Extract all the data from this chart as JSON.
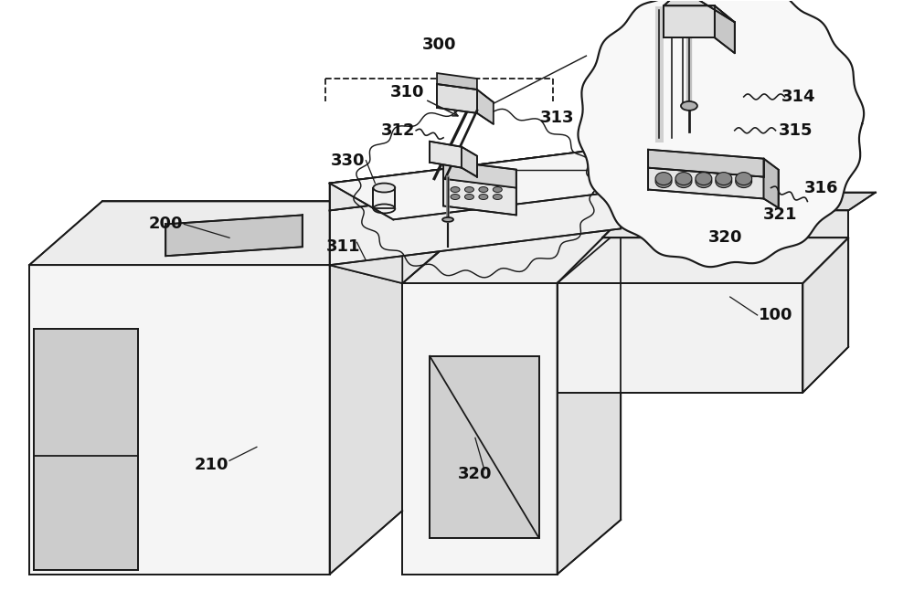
{
  "bg_color": "#ffffff",
  "lc": "#1a1a1a",
  "lw": 1.3,
  "label_fontsize": 13,
  "light1": "#f8f8f8",
  "light2": "#f0f0f0",
  "med1": "#e0e0e0",
  "med2": "#d0d0d0",
  "dark1": "#b8b8b8",
  "dark2": "#a0a0a0"
}
